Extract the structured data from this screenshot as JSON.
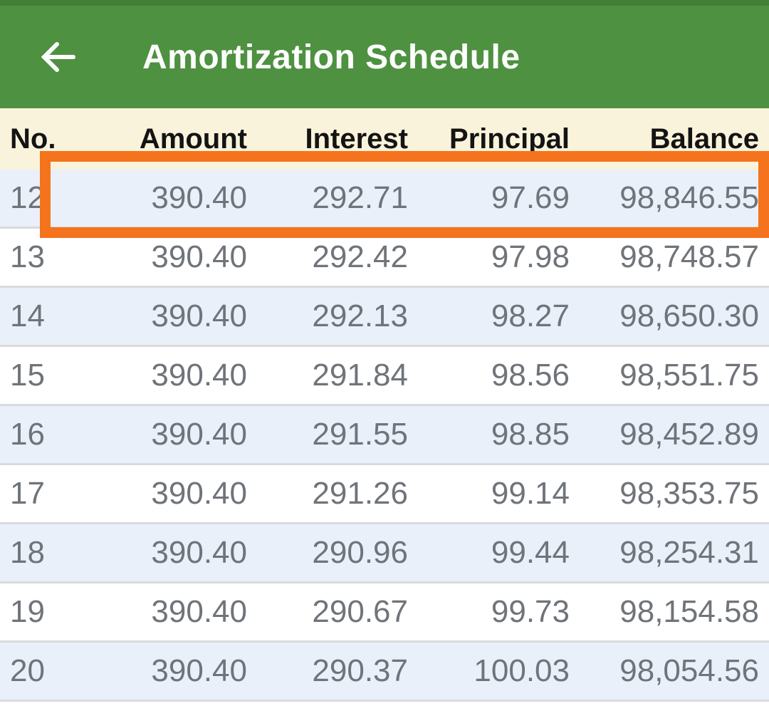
{
  "app_bar": {
    "title": "Amortization Schedule",
    "back_icon": "arrow-left-icon"
  },
  "table": {
    "columns": [
      {
        "key": "no",
        "label": "No."
      },
      {
        "key": "amount",
        "label": "Amount"
      },
      {
        "key": "interest",
        "label": "Interest"
      },
      {
        "key": "principal",
        "label": "Principal"
      },
      {
        "key": "balance",
        "label": "Balance"
      }
    ],
    "rows": [
      {
        "no": "12",
        "amount": "390.40",
        "interest": "292.71",
        "principal": "97.69",
        "balance": "98,846.55",
        "highlighted": true
      },
      {
        "no": "13",
        "amount": "390.40",
        "interest": "292.42",
        "principal": "97.98",
        "balance": "98,748.57",
        "highlighted": false
      },
      {
        "no": "14",
        "amount": "390.40",
        "interest": "292.13",
        "principal": "98.27",
        "balance": "98,650.30",
        "highlighted": false
      },
      {
        "no": "15",
        "amount": "390.40",
        "interest": "291.84",
        "principal": "98.56",
        "balance": "98,551.75",
        "highlighted": false
      },
      {
        "no": "16",
        "amount": "390.40",
        "interest": "291.55",
        "principal": "98.85",
        "balance": "98,452.89",
        "highlighted": false
      },
      {
        "no": "17",
        "amount": "390.40",
        "interest": "291.26",
        "principal": "99.14",
        "balance": "98,353.75",
        "highlighted": false
      },
      {
        "no": "18",
        "amount": "390.40",
        "interest": "290.96",
        "principal": "99.44",
        "balance": "98,254.31",
        "highlighted": false
      },
      {
        "no": "19",
        "amount": "390.40",
        "interest": "290.67",
        "principal": "99.73",
        "balance": "98,154.58",
        "highlighted": false
      },
      {
        "no": "20",
        "amount": "390.40",
        "interest": "290.37",
        "principal": "100.03",
        "balance": "98,054.56",
        "highlighted": false
      }
    ]
  },
  "highlight": {
    "shape": "rectangle",
    "color": "#f4731c",
    "highlighted_row_no": "12"
  },
  "colors": {
    "app_bar_green": "#4e9140",
    "app_bar_top_strip": "#447f36",
    "header_row_cream": "#faf3db",
    "row_alt_blue": "#e9f0f9",
    "row_white": "#ffffff",
    "divider_gray": "#d9dadc",
    "row_text_gray": "#6f747a",
    "header_text": "#141414",
    "highlight_orange": "#f4731c",
    "title_text": "#fdfdfd"
  }
}
